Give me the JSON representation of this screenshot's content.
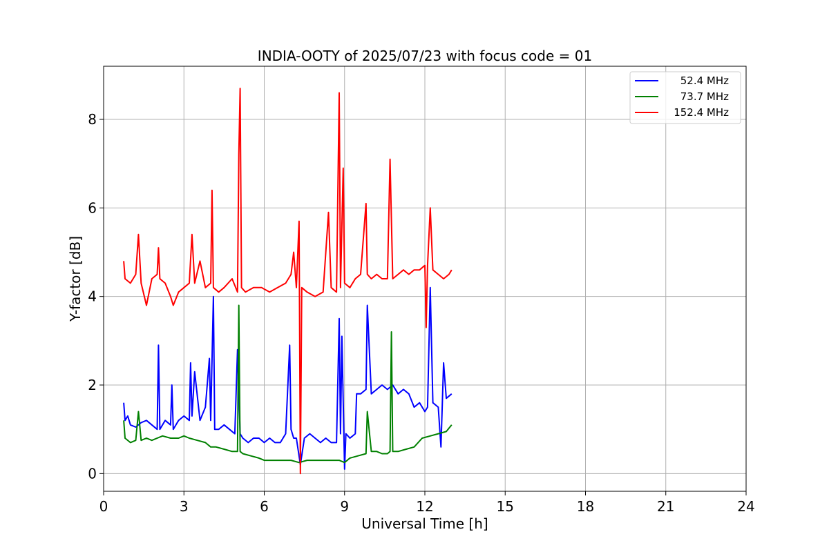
{
  "chart_data": {
    "type": "line",
    "title": "INDIA-OOTY of 2025/07/23 with focus code = 01",
    "xlabel": "Universal Time [h]",
    "ylabel": "Y-factor [dB]",
    "xlim": [
      0,
      24
    ],
    "ylim": [
      -0.4,
      9.2
    ],
    "xticks": [
      0,
      3,
      6,
      9,
      12,
      15,
      18,
      21,
      24
    ],
    "yticks": [
      0,
      2,
      4,
      6,
      8
    ],
    "grid": true,
    "legend_position": "top-right",
    "series": [
      {
        "name": " 52.4 MHz",
        "color": "#0000ff",
        "x": [
          0.75,
          0.8,
          0.9,
          1.0,
          1.2,
          1.4,
          1.6,
          1.8,
          2.0,
          2.05,
          2.1,
          2.3,
          2.5,
          2.55,
          2.6,
          2.8,
          3.0,
          3.2,
          3.25,
          3.3,
          3.4,
          3.6,
          3.8,
          3.95,
          4.0,
          4.1,
          4.15,
          4.3,
          4.5,
          4.7,
          4.9,
          5.0,
          5.1,
          5.2,
          5.4,
          5.6,
          5.8,
          6.0,
          6.2,
          6.4,
          6.6,
          6.8,
          6.95,
          7.0,
          7.1,
          7.2,
          7.35,
          7.5,
          7.7,
          7.9,
          8.1,
          8.3,
          8.5,
          8.7,
          8.8,
          8.85,
          8.9,
          9.0,
          9.05,
          9.2,
          9.4,
          9.45,
          9.6,
          9.8,
          9.85,
          10.0,
          10.2,
          10.4,
          10.6,
          10.8,
          11.0,
          11.2,
          11.4,
          11.6,
          11.8,
          12.0,
          12.1,
          12.2,
          12.3,
          12.5,
          12.6,
          12.7,
          12.8,
          13.0
        ],
        "y": [
          1.6,
          1.2,
          1.3,
          1.1,
          1.05,
          1.15,
          1.2,
          1.1,
          1.0,
          2.9,
          1.0,
          1.2,
          1.1,
          2.0,
          1.0,
          1.2,
          1.3,
          1.2,
          2.5,
          1.3,
          2.3,
          1.2,
          1.5,
          2.6,
          1.2,
          4.0,
          1.0,
          1.0,
          1.1,
          1.0,
          0.9,
          2.8,
          0.9,
          0.8,
          0.7,
          0.8,
          0.8,
          0.7,
          0.8,
          0.7,
          0.7,
          0.9,
          2.9,
          1.0,
          0.8,
          0.8,
          0.2,
          0.8,
          0.9,
          0.8,
          0.7,
          0.8,
          0.7,
          0.7,
          3.5,
          0.9,
          3.1,
          0.1,
          0.9,
          0.8,
          0.9,
          1.8,
          1.8,
          1.9,
          3.8,
          1.8,
          1.9,
          2.0,
          1.9,
          2.0,
          1.8,
          1.9,
          1.8,
          1.5,
          1.6,
          1.4,
          1.5,
          4.2,
          1.6,
          1.5,
          0.6,
          2.5,
          1.7,
          1.8
        ]
      },
      {
        "name": " 73.7 MHz",
        "color": "#008000",
        "x": [
          0.75,
          0.8,
          1.0,
          1.2,
          1.3,
          1.4,
          1.6,
          1.8,
          2.0,
          2.2,
          2.5,
          2.8,
          3.0,
          3.2,
          3.5,
          3.8,
          4.0,
          4.2,
          4.5,
          4.8,
          5.0,
          5.05,
          5.1,
          5.2,
          5.5,
          5.8,
          6.0,
          6.3,
          6.6,
          7.0,
          7.3,
          7.6,
          7.9,
          8.2,
          8.5,
          8.8,
          9.0,
          9.2,
          9.5,
          9.8,
          9.85,
          10.0,
          10.2,
          10.4,
          10.6,
          10.7,
          10.75,
          10.8,
          11.0,
          11.3,
          11.6,
          11.9,
          12.2,
          12.5,
          12.8,
          13.0
        ],
        "y": [
          1.2,
          0.8,
          0.7,
          0.75,
          1.4,
          0.75,
          0.8,
          0.75,
          0.8,
          0.85,
          0.8,
          0.8,
          0.85,
          0.8,
          0.75,
          0.7,
          0.6,
          0.6,
          0.55,
          0.5,
          0.5,
          3.8,
          0.5,
          0.45,
          0.4,
          0.35,
          0.3,
          0.3,
          0.3,
          0.3,
          0.25,
          0.3,
          0.3,
          0.3,
          0.3,
          0.3,
          0.25,
          0.35,
          0.4,
          0.45,
          1.4,
          0.5,
          0.5,
          0.45,
          0.45,
          0.5,
          3.2,
          0.5,
          0.5,
          0.55,
          0.6,
          0.8,
          0.85,
          0.9,
          0.95,
          1.1
        ]
      },
      {
        "name": " 152.4 MHz",
        "color": "#ff0000",
        "x": [
          0.75,
          0.8,
          1.0,
          1.2,
          1.3,
          1.4,
          1.6,
          1.8,
          2.0,
          2.05,
          2.1,
          2.3,
          2.5,
          2.6,
          2.8,
          3.0,
          3.2,
          3.3,
          3.4,
          3.6,
          3.8,
          4.0,
          4.05,
          4.1,
          4.3,
          4.5,
          4.8,
          5.0,
          5.05,
          5.1,
          5.15,
          5.3,
          5.6,
          5.9,
          6.2,
          6.5,
          6.8,
          7.0,
          7.1,
          7.2,
          7.3,
          7.35,
          7.4,
          7.6,
          7.9,
          8.2,
          8.4,
          8.5,
          8.7,
          8.8,
          8.85,
          8.95,
          9.0,
          9.2,
          9.4,
          9.6,
          9.8,
          9.85,
          10.0,
          10.2,
          10.4,
          10.6,
          10.7,
          10.8,
          11.0,
          11.2,
          11.4,
          11.6,
          11.8,
          12.0,
          12.05,
          12.1,
          12.2,
          12.3,
          12.5,
          12.7,
          12.9,
          13.0
        ],
        "y": [
          4.8,
          4.4,
          4.3,
          4.5,
          5.4,
          4.3,
          3.8,
          4.4,
          4.5,
          5.1,
          4.4,
          4.3,
          4.0,
          3.8,
          4.1,
          4.2,
          4.3,
          5.4,
          4.3,
          4.8,
          4.2,
          4.3,
          6.4,
          4.2,
          4.1,
          4.2,
          4.4,
          4.1,
          7.2,
          8.7,
          4.2,
          4.1,
          4.2,
          4.2,
          4.1,
          4.2,
          4.3,
          4.5,
          5.0,
          4.2,
          5.7,
          0.0,
          4.2,
          4.1,
          4.0,
          4.1,
          5.9,
          4.2,
          4.1,
          8.6,
          4.2,
          6.9,
          4.3,
          4.2,
          4.4,
          4.5,
          6.1,
          4.5,
          4.4,
          4.5,
          4.4,
          4.4,
          7.1,
          4.4,
          4.5,
          4.6,
          4.5,
          4.6,
          4.6,
          4.7,
          3.3,
          4.7,
          6.0,
          4.6,
          4.5,
          4.4,
          4.5,
          4.6
        ]
      }
    ]
  }
}
